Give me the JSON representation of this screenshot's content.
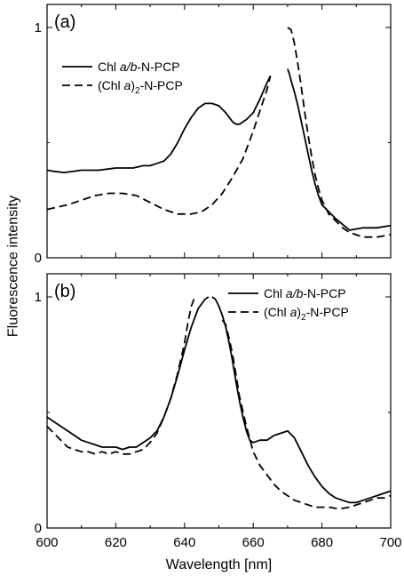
{
  "ylabel": "Fluorescence intensity",
  "xlabel": "Wavelength [nm]",
  "chart_data": [
    {
      "type": "line",
      "panel_label": "(a)",
      "xlim": [
        600,
        700
      ],
      "ylim": [
        0,
        1.1
      ],
      "yticks": [
        0,
        1
      ],
      "ytick_labels": [
        "0",
        "1"
      ],
      "legend_position": "top-left",
      "series": [
        {
          "name_parts": [
            "Chl ",
            "a/b",
            "-N-PCP",
            ""
          ],
          "style": "solid",
          "segments": [
            {
              "x": [
                600,
                602,
                605,
                610,
                615,
                620,
                625,
                628,
                630,
                632,
                634,
                636,
                638,
                640,
                642,
                644,
                646,
                648,
                650,
                652,
                654,
                655,
                656,
                658,
                660,
                662,
                664,
                665
              ],
              "y": [
                0.38,
                0.375,
                0.37,
                0.38,
                0.38,
                0.39,
                0.39,
                0.4,
                0.4,
                0.41,
                0.42,
                0.45,
                0.5,
                0.56,
                0.61,
                0.65,
                0.67,
                0.67,
                0.66,
                0.63,
                0.59,
                0.58,
                0.58,
                0.6,
                0.63,
                0.69,
                0.76,
                0.79
              ]
            },
            {
              "x": [
                670,
                670.5,
                671,
                672,
                673,
                674,
                675,
                676,
                677,
                678,
                679,
                680,
                682,
                684,
                686,
                688,
                690,
                692,
                694,
                696,
                698,
                700
              ],
              "y": [
                0.82,
                0.8,
                0.77,
                0.72,
                0.66,
                0.59,
                0.52,
                0.45,
                0.38,
                0.32,
                0.27,
                0.23,
                0.2,
                0.17,
                0.145,
                0.12,
                0.125,
                0.13,
                0.13,
                0.13,
                0.135,
                0.14
              ]
            }
          ]
        },
        {
          "name_parts": [
            "(Chl ",
            "a",
            ")",
            "2",
            "-N-PCP"
          ],
          "style": "dashed",
          "segments": [
            {
              "x": [
                600,
                603,
                606,
                610,
                614,
                618,
                622,
                626,
                630,
                634,
                638,
                642,
                645,
                648,
                651,
                654,
                657,
                660,
                662,
                664,
                665
              ],
              "y": [
                0.21,
                0.22,
                0.23,
                0.25,
                0.27,
                0.28,
                0.28,
                0.27,
                0.24,
                0.21,
                0.19,
                0.19,
                0.2,
                0.23,
                0.28,
                0.35,
                0.43,
                0.55,
                0.64,
                0.73,
                0.79
              ]
            },
            {
              "x": [
                670,
                671,
                672,
                673,
                674,
                675,
                676,
                677,
                678,
                679,
                680,
                682,
                684,
                686,
                688,
                690,
                692,
                694,
                696,
                698,
                700
              ],
              "y": [
                1.0,
                0.99,
                0.93,
                0.84,
                0.74,
                0.63,
                0.53,
                0.44,
                0.36,
                0.3,
                0.25,
                0.19,
                0.16,
                0.13,
                0.11,
                0.1,
                0.09,
                0.09,
                0.09,
                0.095,
                0.1
              ]
            }
          ]
        }
      ]
    },
    {
      "type": "line",
      "panel_label": "(b)",
      "xlim": [
        600,
        700
      ],
      "ylim": [
        0,
        1.1
      ],
      "yticks": [
        0,
        1
      ],
      "ytick_labels": [
        "0",
        "1"
      ],
      "xticks": [
        600,
        620,
        640,
        660,
        680,
        700
      ],
      "xtick_labels": [
        "600",
        "620",
        "640",
        "660",
        "680",
        "700"
      ],
      "legend_position": "top-right",
      "series": [
        {
          "name_parts": [
            "Chl ",
            "a/b",
            "-N-PCP",
            ""
          ],
          "style": "solid",
          "segments": [
            {
              "x": [
                600,
                602,
                604,
                606,
                608,
                610,
                612,
                614,
                616,
                618,
                620,
                622,
                624,
                626,
                628,
                630,
                632,
                634,
                636,
                638,
                640,
                642,
                644,
                646,
                647
              ],
              "y": [
                0.48,
                0.46,
                0.44,
                0.42,
                0.4,
                0.38,
                0.37,
                0.36,
                0.35,
                0.35,
                0.35,
                0.34,
                0.35,
                0.35,
                0.37,
                0.39,
                0.42,
                0.48,
                0.56,
                0.66,
                0.77,
                0.87,
                0.95,
                0.99,
                1.0
              ]
            },
            {
              "x": [
                648,
                649,
                650,
                651,
                652,
                653,
                654,
                655,
                656,
                657,
                658,
                659,
                660,
                662,
                664,
                666,
                668,
                670,
                672,
                674,
                676,
                678,
                680,
                682,
                684,
                686,
                688,
                690,
                692,
                694,
                696,
                698,
                700
              ],
              "y": [
                1.0,
                0.99,
                0.96,
                0.92,
                0.87,
                0.8,
                0.72,
                0.63,
                0.55,
                0.48,
                0.42,
                0.38,
                0.37,
                0.38,
                0.38,
                0.4,
                0.41,
                0.42,
                0.39,
                0.33,
                0.27,
                0.22,
                0.18,
                0.15,
                0.13,
                0.12,
                0.11,
                0.11,
                0.12,
                0.13,
                0.14,
                0.15,
                0.16
              ]
            }
          ]
        },
        {
          "name_parts": [
            "(Chl ",
            "a",
            ")",
            "2",
            "-N-PCP"
          ],
          "style": "dashed",
          "segments": [
            {
              "x": [
                600,
                602,
                604,
                606,
                608,
                610,
                612,
                614,
                616,
                618,
                620,
                622,
                624,
                626,
                628,
                630,
                632,
                634,
                636,
                638,
                640,
                641,
                642,
                643
              ],
              "y": [
                0.44,
                0.41,
                0.38,
                0.35,
                0.34,
                0.33,
                0.33,
                0.32,
                0.33,
                0.32,
                0.33,
                0.32,
                0.32,
                0.33,
                0.34,
                0.37,
                0.41,
                0.48,
                0.56,
                0.67,
                0.8,
                0.89,
                0.96,
                1.0
              ]
            },
            {
              "x": [
                651,
                652,
                653,
                654,
                655,
                656,
                658,
                660,
                662,
                664,
                666,
                668,
                670,
                672,
                674,
                676,
                678,
                680,
                682,
                684,
                686,
                688,
                690,
                692,
                694,
                696,
                698,
                700
              ],
              "y": [
                0.9,
                0.88,
                0.82,
                0.75,
                0.66,
                0.57,
                0.44,
                0.33,
                0.27,
                0.23,
                0.19,
                0.16,
                0.14,
                0.12,
                0.11,
                0.1,
                0.09,
                0.09,
                0.09,
                0.085,
                0.085,
                0.09,
                0.1,
                0.11,
                0.12,
                0.13,
                0.13,
                0.14
              ]
            }
          ]
        }
      ]
    }
  ]
}
